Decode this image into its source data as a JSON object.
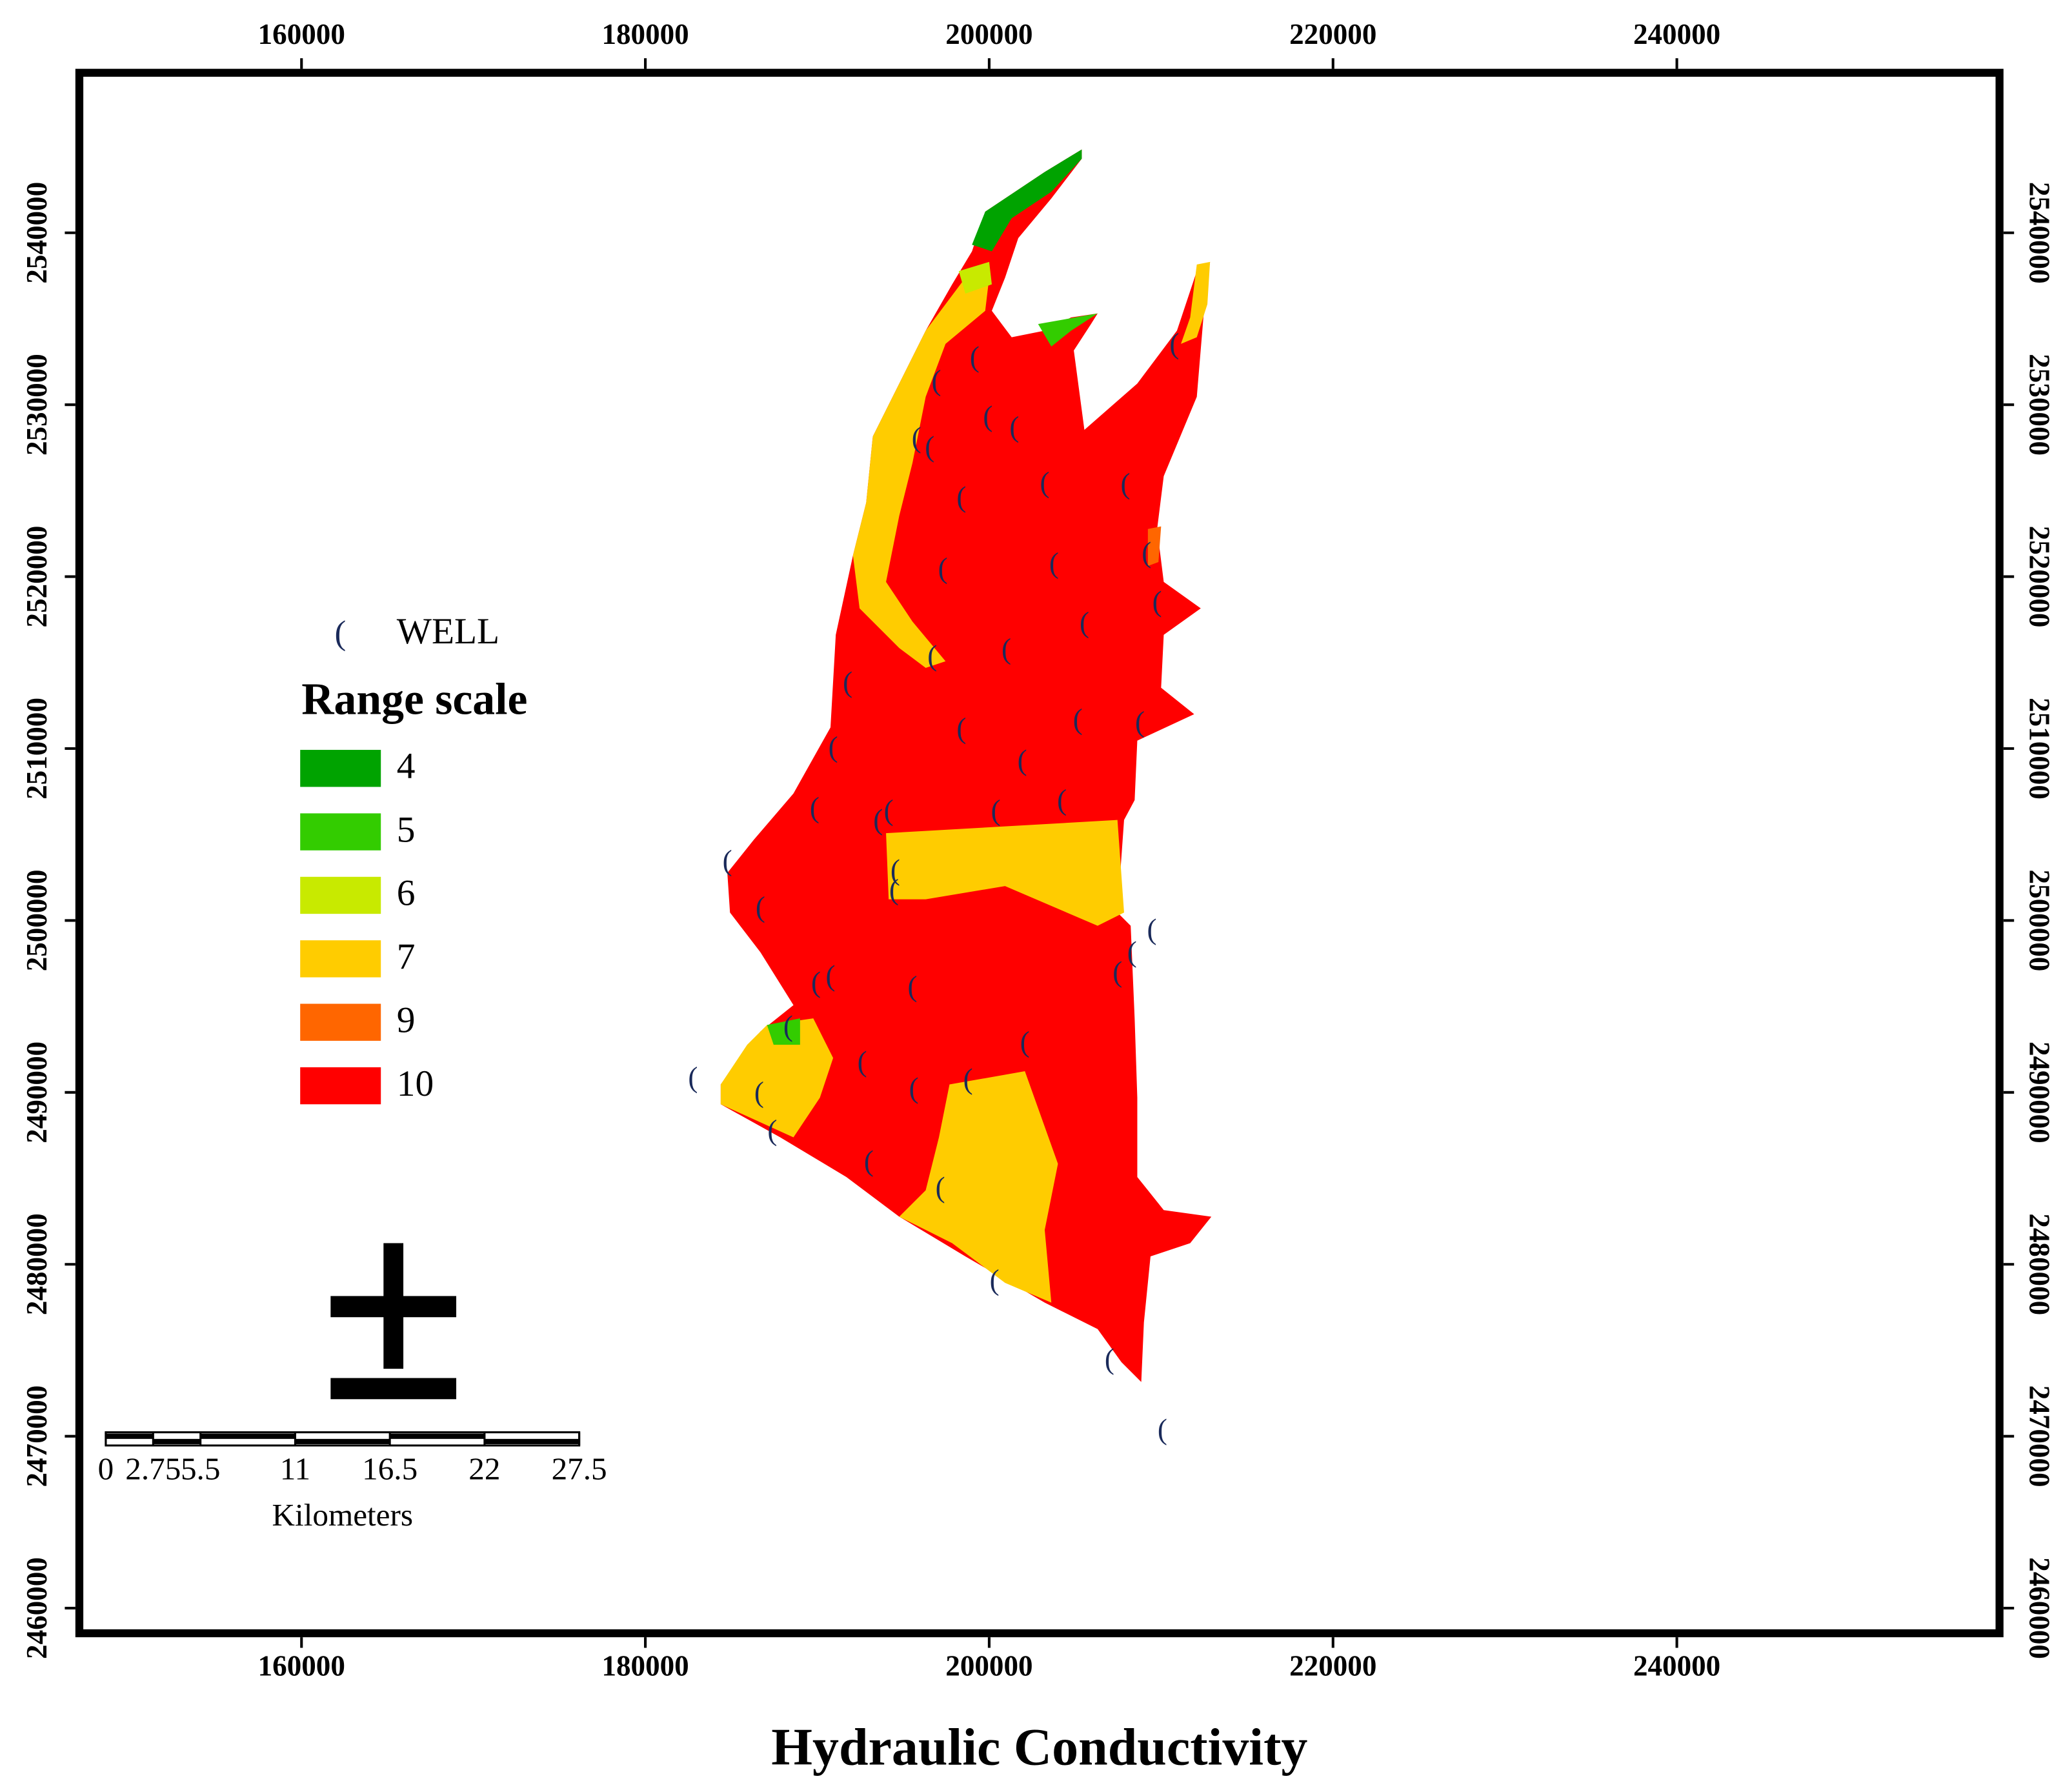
{
  "map": {
    "title": "Hydraulic Conductivity",
    "xticks": [
      160000,
      180000,
      200000,
      220000,
      240000
    ],
    "yticks": [
      2460000,
      2470000,
      2480000,
      2490000,
      2500000,
      2510000,
      2520000,
      2530000,
      2540000
    ],
    "legend": {
      "well_label": "WELL",
      "title": "Range scale",
      "items": [
        {
          "value": 4,
          "color": "#00a300"
        },
        {
          "value": 5,
          "color": "#33cc00"
        },
        {
          "value": 6,
          "color": "#c8ea00"
        },
        {
          "value": 7,
          "color": "#ffcc00"
        },
        {
          "value": 9,
          "color": "#ff6600"
        },
        {
          "value": 10,
          "color": "#ff0000"
        }
      ]
    },
    "scale_bar": {
      "ticks": [
        0,
        2.75,
        5.5,
        11,
        16.5,
        22,
        27.5
      ],
      "unit": "Kilometers"
    }
  }
}
